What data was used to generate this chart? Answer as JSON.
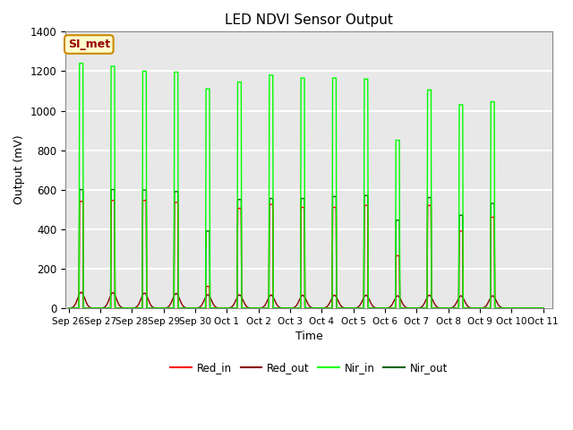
{
  "title": "LED NDVI Sensor Output",
  "xlabel": "Time",
  "ylabel": "Output (mV)",
  "ylim": [
    0,
    1400
  ],
  "background_color": "#e8e8e8",
  "grid_color": "white",
  "annotation_text": "SI_met",
  "annotation_bg": "#ffffcc",
  "annotation_border": "#cc8800",
  "annotation_text_color": "#990000",
  "x_tick_labels": [
    "Sep 26",
    "Sep 27",
    "Sep 28",
    "Sep 29",
    "Sep 30",
    "Oct 1",
    "Oct 2",
    "Oct 3",
    "Oct 4",
    "Oct 5",
    "Oct 6",
    "Oct 7",
    "Oct 8",
    "Oct 9",
    "Oct 10",
    "Oct 11"
  ],
  "colors": {
    "Red_in": "#ff0000",
    "Red_out": "#8b0000",
    "Nir_in": "#00ff00",
    "Nir_out": "#006400"
  },
  "legend_labels": [
    "Red_in",
    "Red_out",
    "Nir_in",
    "Nir_out"
  ],
  "peaks": [
    {
      "day": 0.4,
      "red_in": 540,
      "red_out": 80,
      "nir_in": 1240,
      "nir_out": 600
    },
    {
      "day": 1.4,
      "red_in": 545,
      "red_out": 78,
      "nir_in": 1225,
      "nir_out": 600
    },
    {
      "day": 2.4,
      "red_in": 545,
      "red_out": 76,
      "nir_in": 1200,
      "nir_out": 598
    },
    {
      "day": 3.4,
      "red_in": 535,
      "red_out": 74,
      "nir_in": 1195,
      "nir_out": 590
    },
    {
      "day": 4.4,
      "red_in": 110,
      "red_out": 68,
      "nir_in": 1110,
      "nir_out": 390
    },
    {
      "day": 5.4,
      "red_in": 505,
      "red_out": 67,
      "nir_in": 1145,
      "nir_out": 550
    },
    {
      "day": 6.4,
      "red_in": 525,
      "red_out": 66,
      "nir_in": 1180,
      "nir_out": 555
    },
    {
      "day": 7.4,
      "red_in": 510,
      "red_out": 65,
      "nir_in": 1165,
      "nir_out": 555
    },
    {
      "day": 8.4,
      "red_in": 510,
      "red_out": 65,
      "nir_in": 1165,
      "nir_out": 565
    },
    {
      "day": 9.4,
      "red_in": 520,
      "red_out": 65,
      "nir_in": 1160,
      "nir_out": 570
    },
    {
      "day": 10.4,
      "red_in": 265,
      "red_out": 62,
      "nir_in": 850,
      "nir_out": 445
    },
    {
      "day": 11.4,
      "red_in": 520,
      "red_out": 65,
      "nir_in": 1105,
      "nir_out": 560
    },
    {
      "day": 12.4,
      "red_in": 390,
      "red_out": 62,
      "nir_in": 1030,
      "nir_out": 470
    },
    {
      "day": 13.4,
      "red_in": 460,
      "red_out": 62,
      "nir_in": 1045,
      "nir_out": 530
    }
  ]
}
